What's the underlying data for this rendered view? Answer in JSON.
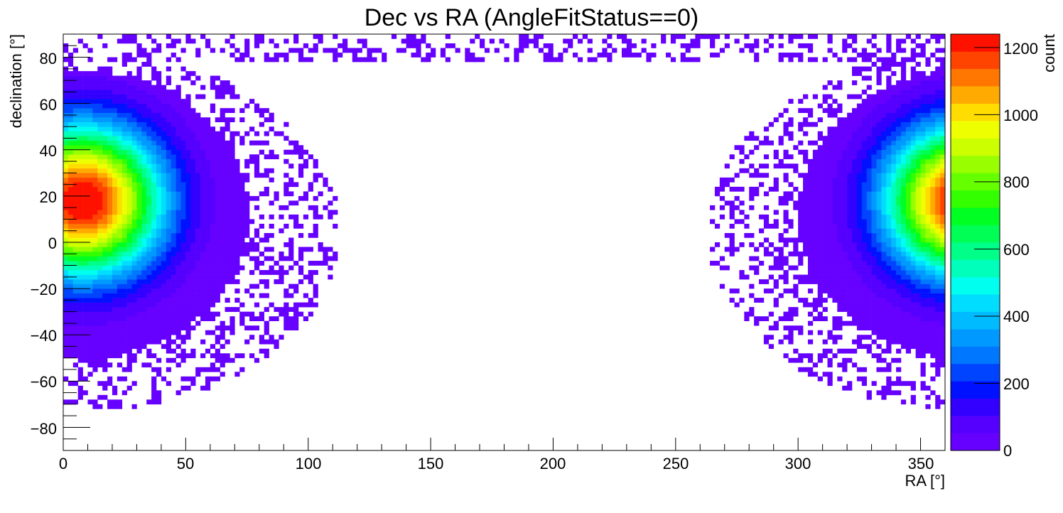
{
  "chart_data": {
    "type": "heatmap",
    "title": "Dec vs RA (AngleFitStatus==0)",
    "xlabel": "RA [°]",
    "ylabel": "declination [°]",
    "zlabel": "count",
    "xlim": [
      0,
      360
    ],
    "ylim": [
      -90,
      90
    ],
    "zlim": [
      0,
      1240
    ],
    "x_ticks": [
      "0",
      "50",
      "100",
      "150",
      "200",
      "250",
      "300",
      "350"
    ],
    "y_ticks": [
      "−80",
      "−60",
      "−40",
      "−20",
      "0",
      "20",
      "40",
      "60",
      "80"
    ],
    "z_ticks": [
      "0",
      "200",
      "400",
      "600",
      "800",
      "1000",
      "1200"
    ],
    "palette": [
      "#6600ff",
      "#5500ff",
      "#3300ff",
      "#0011ff",
      "#0044ff",
      "#0077ff",
      "#0099ff",
      "#00bbff",
      "#00ddff",
      "#00ffee",
      "#00ffbb",
      "#00ff88",
      "#00ff55",
      "#00ff22",
      "#33ff00",
      "#66ff00",
      "#99ff00",
      "#ccff00",
      "#eeff00",
      "#ffdd00",
      "#ffaa00",
      "#ff7700",
      "#ff4400",
      "#ff1100"
    ],
    "grid": false,
    "peak": {
      "ra": 8,
      "dec": 18,
      "count": 1240
    }
  }
}
